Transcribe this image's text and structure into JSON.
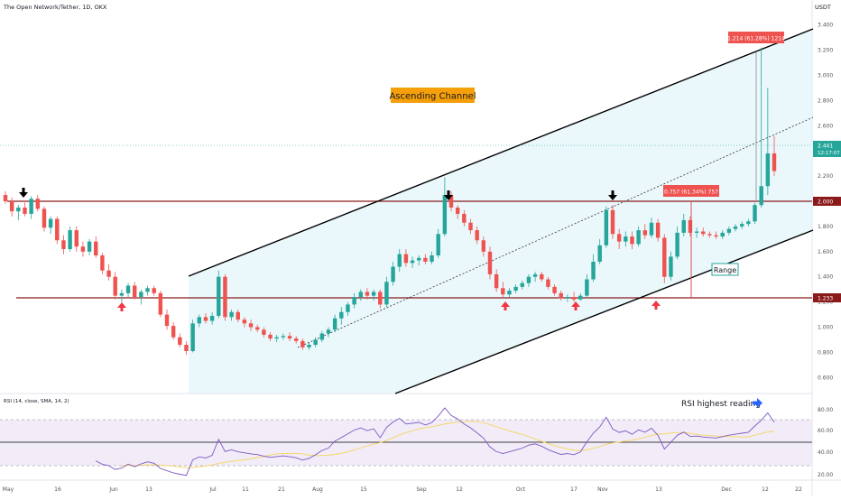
{
  "header": {
    "symbol_title": "The Open Network/Tether, 1D, OKX",
    "currency": "USDT"
  },
  "chart_data": {
    "type": "candlestick",
    "y_ticks": [
      "3.400",
      "3.200",
      "3.000",
      "2.800",
      "2.600",
      "2.400",
      "2.200",
      "2.000",
      "1.800",
      "1.600",
      "1.400",
      "1.200",
      "1.000",
      "0.800",
      "0.600"
    ],
    "x_ticks": [
      "May",
      "16",
      "Jun",
      "13",
      "Jul",
      "11",
      "21",
      "Aug",
      "15",
      "Sep",
      "12",
      "Oct",
      "17",
      "Nov",
      "13",
      "Dec",
      "12",
      "22"
    ],
    "horizontal_levels": [
      {
        "label": "2.000",
        "value": 2.0
      },
      {
        "label": "1.233",
        "value": 1.233
      }
    ],
    "last_price": {
      "label": "2.441",
      "countdown": "12:17:07",
      "value": 2.441
    },
    "annotations": {
      "channel_title": "Ascending Channel",
      "range_label": "Range",
      "measure_large": "1.214 (61.28%) 1214",
      "measure_small": "0.757 (61.34%) 757",
      "rsi_note": "RSI highest reading"
    },
    "candles": [
      [
        2.05,
        2.08,
        1.98,
        2.0
      ],
      [
        2.0,
        2.03,
        1.88,
        1.92
      ],
      [
        1.92,
        1.97,
        1.85,
        1.95
      ],
      [
        1.95,
        1.99,
        1.88,
        1.9
      ],
      [
        1.9,
        2.04,
        1.86,
        2.02
      ],
      [
        2.02,
        2.05,
        1.92,
        1.94
      ],
      [
        1.94,
        1.96,
        1.76,
        1.79
      ],
      [
        1.79,
        1.88,
        1.74,
        1.86
      ],
      [
        1.86,
        1.88,
        1.66,
        1.69
      ],
      [
        1.69,
        1.73,
        1.58,
        1.62
      ],
      [
        1.62,
        1.8,
        1.6,
        1.77
      ],
      [
        1.77,
        1.8,
        1.6,
        1.64
      ],
      [
        1.64,
        1.68,
        1.56,
        1.6
      ],
      [
        1.6,
        1.7,
        1.57,
        1.68
      ],
      [
        1.68,
        1.72,
        1.55,
        1.57
      ],
      [
        1.57,
        1.59,
        1.42,
        1.45
      ],
      [
        1.45,
        1.5,
        1.37,
        1.4
      ],
      [
        1.4,
        1.44,
        1.22,
        1.25
      ],
      [
        1.25,
        1.3,
        1.18,
        1.27
      ],
      [
        1.27,
        1.35,
        1.24,
        1.33
      ],
      [
        1.33,
        1.36,
        1.22,
        1.24
      ],
      [
        1.24,
        1.3,
        1.18,
        1.28
      ],
      [
        1.28,
        1.33,
        1.25,
        1.31
      ],
      [
        1.31,
        1.33,
        1.25,
        1.27
      ],
      [
        1.27,
        1.29,
        1.08,
        1.1
      ],
      [
        1.1,
        1.14,
        0.98,
        1.01
      ],
      [
        1.01,
        1.04,
        0.9,
        0.92
      ],
      [
        0.92,
        0.95,
        0.84,
        0.86
      ],
      [
        0.86,
        0.89,
        0.78,
        0.81
      ],
      [
        0.81,
        1.06,
        0.8,
        1.03
      ],
      [
        1.03,
        1.1,
        1.0,
        1.08
      ],
      [
        1.08,
        1.11,
        1.03,
        1.05
      ],
      [
        1.05,
        1.12,
        1.02,
        1.09
      ],
      [
        1.09,
        1.45,
        1.07,
        1.4
      ],
      [
        1.4,
        1.42,
        1.05,
        1.08
      ],
      [
        1.08,
        1.14,
        1.05,
        1.12
      ],
      [
        1.12,
        1.14,
        1.04,
        1.06
      ],
      [
        1.06,
        1.08,
        1.0,
        1.03
      ],
      [
        1.03,
        1.06,
        0.97,
        1.0
      ],
      [
        1.0,
        1.02,
        0.96,
        0.98
      ],
      [
        0.98,
        1.0,
        0.92,
        0.94
      ],
      [
        0.94,
        0.96,
        0.89,
        0.91
      ],
      [
        0.91,
        0.94,
        0.88,
        0.92
      ],
      [
        0.92,
        0.95,
        0.9,
        0.93
      ],
      [
        0.93,
        0.96,
        0.89,
        0.91
      ],
      [
        0.91,
        0.93,
        0.87,
        0.89
      ],
      [
        0.89,
        0.91,
        0.82,
        0.84
      ],
      [
        0.84,
        0.88,
        0.82,
        0.86
      ],
      [
        0.86,
        0.92,
        0.84,
        0.9
      ],
      [
        0.9,
        0.97,
        0.88,
        0.95
      ],
      [
        0.95,
        1.0,
        0.92,
        0.98
      ],
      [
        0.98,
        1.1,
        0.96,
        1.07
      ],
      [
        1.07,
        1.16,
        1.02,
        1.12
      ],
      [
        1.12,
        1.2,
        1.09,
        1.18
      ],
      [
        1.18,
        1.27,
        1.15,
        1.24
      ],
      [
        1.24,
        1.3,
        1.21,
        1.28
      ],
      [
        1.28,
        1.31,
        1.22,
        1.25
      ],
      [
        1.25,
        1.3,
        1.21,
        1.28
      ],
      [
        1.28,
        1.3,
        1.15,
        1.18
      ],
      [
        1.18,
        1.4,
        1.16,
        1.36
      ],
      [
        1.36,
        1.52,
        1.33,
        1.48
      ],
      [
        1.48,
        1.62,
        1.44,
        1.58
      ],
      [
        1.58,
        1.62,
        1.48,
        1.51
      ],
      [
        1.51,
        1.56,
        1.47,
        1.53
      ],
      [
        1.53,
        1.57,
        1.49,
        1.55
      ],
      [
        1.55,
        1.58,
        1.5,
        1.52
      ],
      [
        1.52,
        1.6,
        1.5,
        1.57
      ],
      [
        1.57,
        1.78,
        1.55,
        1.74
      ],
      [
        1.74,
        2.19,
        1.72,
        2.05
      ],
      [
        2.05,
        2.08,
        1.92,
        1.95
      ],
      [
        1.95,
        1.97,
        1.86,
        1.9
      ],
      [
        1.9,
        1.93,
        1.8,
        1.83
      ],
      [
        1.83,
        1.86,
        1.74,
        1.77
      ],
      [
        1.77,
        1.8,
        1.66,
        1.69
      ],
      [
        1.69,
        1.72,
        1.56,
        1.6
      ],
      [
        1.6,
        1.64,
        1.38,
        1.42
      ],
      [
        1.42,
        1.46,
        1.28,
        1.31
      ],
      [
        1.31,
        1.36,
        1.24,
        1.26
      ],
      [
        1.26,
        1.31,
        1.24,
        1.29
      ],
      [
        1.29,
        1.34,
        1.27,
        1.32
      ],
      [
        1.32,
        1.37,
        1.3,
        1.35
      ],
      [
        1.35,
        1.42,
        1.32,
        1.4
      ],
      [
        1.4,
        1.44,
        1.36,
        1.42
      ],
      [
        1.42,
        1.44,
        1.36,
        1.38
      ],
      [
        1.38,
        1.4,
        1.3,
        1.32
      ],
      [
        1.32,
        1.34,
        1.25,
        1.27
      ],
      [
        1.27,
        1.29,
        1.21,
        1.23
      ],
      [
        1.23,
        1.26,
        1.2,
        1.24
      ],
      [
        1.24,
        1.28,
        1.2,
        1.22
      ],
      [
        1.22,
        1.27,
        1.21,
        1.25
      ],
      [
        1.25,
        1.42,
        1.23,
        1.38
      ],
      [
        1.38,
        1.58,
        1.36,
        1.52
      ],
      [
        1.52,
        1.7,
        1.5,
        1.65
      ],
      [
        1.65,
        1.96,
        1.63,
        1.93
      ],
      [
        1.93,
        1.97,
        1.7,
        1.74
      ],
      [
        1.74,
        1.78,
        1.62,
        1.68
      ],
      [
        1.68,
        1.76,
        1.64,
        1.72
      ],
      [
        1.72,
        1.76,
        1.62,
        1.66
      ],
      [
        1.66,
        1.8,
        1.64,
        1.77
      ],
      [
        1.77,
        1.82,
        1.7,
        1.73
      ],
      [
        1.73,
        1.87,
        1.71,
        1.83
      ],
      [
        1.83,
        1.86,
        1.68,
        1.71
      ],
      [
        1.71,
        1.74,
        1.35,
        1.4
      ],
      [
        1.4,
        1.6,
        1.37,
        1.56
      ],
      [
        1.56,
        1.8,
        1.54,
        1.75
      ],
      [
        1.75,
        1.9,
        1.72,
        1.85
      ],
      [
        1.85,
        1.88,
        1.72,
        1.75
      ],
      [
        1.75,
        1.79,
        1.71,
        1.76
      ],
      [
        1.76,
        1.79,
        1.72,
        1.74
      ],
      [
        1.74,
        1.76,
        1.71,
        1.73
      ],
      [
        1.73,
        1.76,
        1.7,
        1.72
      ],
      [
        1.72,
        1.77,
        1.7,
        1.75
      ],
      [
        1.75,
        1.8,
        1.73,
        1.78
      ],
      [
        1.78,
        1.82,
        1.76,
        1.8
      ],
      [
        1.8,
        1.84,
        1.78,
        1.82
      ],
      [
        1.82,
        1.86,
        1.8,
        1.84
      ],
      [
        1.84,
        1.99,
        1.82,
        1.97
      ],
      [
        1.97,
        3.22,
        1.95,
        2.12
      ],
      [
        2.12,
        2.9,
        2.05,
        2.38
      ],
      [
        2.38,
        2.52,
        2.2,
        2.24
      ]
    ]
  }
}
